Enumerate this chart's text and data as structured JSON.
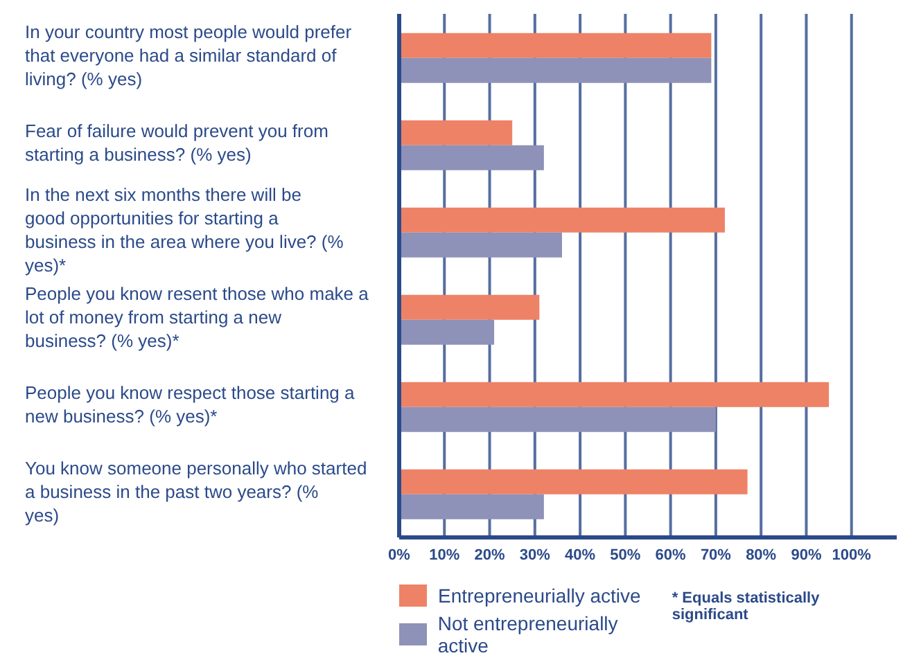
{
  "chart_data": {
    "type": "bar",
    "orientation": "horizontal",
    "categories": [
      "In your country most people would prefer that everyone had a similar standard of living? (% yes)",
      "Fear of failure would prevent you from starting a business? (% yes)",
      "In the next six months there will be good opportunities for starting a business in the area where you live? (% yes)*",
      "People you know resent those who make  a lot of money from starting a new business? (% yes)*",
      "People you know respect those starting a new business? (% yes)*",
      "You know someone personally who started a business in the past two years? (% yes)"
    ],
    "series": [
      {
        "name": "Entrepreneurially active",
        "color": "#ee8266",
        "values": [
          69,
          25,
          72,
          31,
          95,
          77
        ]
      },
      {
        "name": "Not entrepreneurially active",
        "color": "#8e92b8",
        "values": [
          69,
          32,
          36,
          21,
          70,
          32
        ]
      }
    ],
    "xlim": [
      0,
      110
    ],
    "xticks": [
      {
        "value": 0,
        "label": "0%"
      },
      {
        "value": 10,
        "label": "10%"
      },
      {
        "value": 20,
        "label": "20%"
      },
      {
        "value": 30,
        "label": "30%"
      },
      {
        "value": 40,
        "label": "40%"
      },
      {
        "value": 50,
        "label": "50%"
      },
      {
        "value": 60,
        "label": "60%"
      },
      {
        "value": 70,
        "label": "70%"
      },
      {
        "value": 80,
        "label": "80%"
      },
      {
        "value": 90,
        "label": "90%"
      },
      {
        "value": 100,
        "label": "100%"
      }
    ],
    "grid": "x",
    "legend": "bottom left",
    "annotations": [
      "* Equals statistically significant"
    ]
  }
}
